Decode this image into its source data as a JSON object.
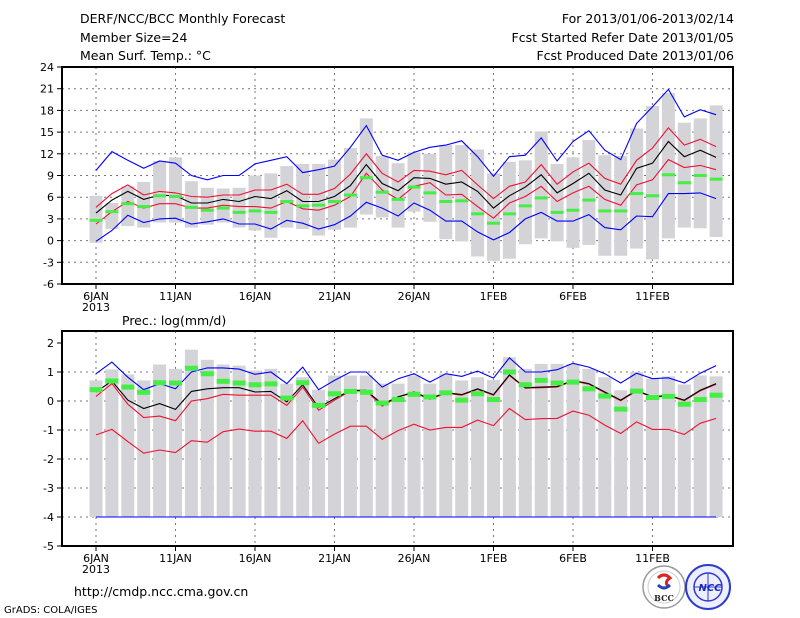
{
  "header": {
    "title": "DERF/NCC/BCC Monthly Forecast",
    "member_size": "Member Size=24",
    "variable": "Mean Surf. Temp.: °C",
    "period": "For 2013/01/06-2013/02/14",
    "fcst_started": "Fcst Started Refer Date 2013/01/05",
    "fcst_produced": "Fcst Produced Date 2013/01/06"
  },
  "footer": {
    "url": "http://cmdp.ncc.cma.gov.cn",
    "credit": "GrADS: COLA/IGES",
    "logos": [
      "BCC",
      "NCC"
    ]
  },
  "colors": {
    "max_min": "#0000ff",
    "percentile": "#ee1133",
    "mean": "#000000",
    "observed": "#44ee44",
    "range_bar": "#d4d4d8"
  },
  "chart_data": [
    {
      "type": "line",
      "title": "Mean Surf. Temp.: °C",
      "ylabel": "°C",
      "ylim": [
        -6,
        24
      ],
      "yticks": [
        "24",
        "21",
        "18",
        "15",
        "12",
        "9",
        "6",
        "3",
        "0",
        "-3",
        "-6"
      ],
      "ytick_values": [
        24,
        21,
        18,
        15,
        12,
        9,
        6,
        3,
        0,
        -3,
        -6
      ],
      "xtick_labels": [
        "6JAN",
        "11JAN",
        "16JAN",
        "21JAN",
        "26JAN",
        "1FEB",
        "6FEB",
        "11FEB"
      ],
      "xtick_days": [
        0,
        5,
        10,
        15,
        20,
        25,
        30,
        35
      ],
      "year_label": "2013",
      "grid": true,
      "days": 40,
      "range_bars": {
        "low": [
          -0.3,
          1.6,
          2.0,
          1.8,
          2.5,
          2.5,
          1.8,
          2.2,
          2.5,
          1.8,
          1.4,
          0.4,
          1.8,
          1.6,
          0.7,
          1.5,
          1.8,
          3.6,
          3.2,
          1.8,
          4.0,
          2.6,
          0.2,
          -0.1,
          -2.2,
          -2.8,
          -2.5,
          -0.5,
          0.3,
          -0.1,
          -1.0,
          -0.6,
          -2.1,
          -2.1,
          -1.1,
          -2.6,
          0.3,
          1.8,
          1.7,
          0.5
        ],
        "high": [
          6.2,
          5.2,
          7.5,
          8.1,
          11.0,
          11.5,
          8.2,
          7.3,
          7.2,
          7.3,
          9.0,
          9.3,
          10.3,
          10.6,
          10.6,
          11.2,
          12.8,
          16.9,
          11.7,
          10.7,
          12.2,
          12.0,
          13.2,
          13.2,
          12.6,
          9.3,
          10.9,
          11.1,
          15.1,
          10.6,
          11.5,
          13.9,
          11.8,
          11.7,
          15.5,
          18.6,
          20.4,
          16.3,
          16.9,
          18.7
        ]
      },
      "series": [
        {
          "name": "max",
          "color_key": "max_min",
          "values": [
            9.7,
            12.3,
            11.1,
            10.0,
            11.0,
            10.7,
            9.0,
            8.4,
            9.0,
            9.0,
            10.6,
            11.1,
            11.6,
            9.4,
            9.8,
            10.3,
            12.9,
            15.9,
            11.8,
            11.1,
            12.2,
            12.9,
            13.2,
            13.8,
            11.6,
            8.9,
            11.6,
            11.8,
            14.2,
            11.0,
            13.7,
            15.2,
            12.5,
            11.2,
            16.2,
            18.5,
            20.9,
            17.1,
            18.1,
            17.4
          ]
        },
        {
          "name": "upper",
          "color_key": "percentile",
          "values": [
            4.6,
            6.5,
            7.7,
            6.3,
            6.8,
            6.6,
            6.1,
            6.0,
            6.3,
            6.3,
            7.0,
            7.0,
            7.8,
            6.4,
            6.4,
            7.2,
            9.2,
            12.0,
            9.3,
            8.1,
            9.7,
            9.6,
            9.1,
            9.7,
            7.7,
            5.8,
            7.5,
            8.1,
            10.5,
            7.8,
            9.5,
            10.7,
            8.6,
            7.8,
            11.1,
            12.8,
            15.6,
            13.2,
            14.0,
            13.0
          ]
        },
        {
          "name": "mean",
          "color_key": "mean",
          "values": [
            3.8,
            5.6,
            6.8,
            5.7,
            6.3,
            6.2,
            5.2,
            5.2,
            5.7,
            5.4,
            6.1,
            5.8,
            6.9,
            5.4,
            5.4,
            6.1,
            7.6,
            10.5,
            7.9,
            6.9,
            8.7,
            8.6,
            7.8,
            8.1,
            6.8,
            4.5,
            6.2,
            7.4,
            9.1,
            6.6,
            7.9,
            9.3,
            7.0,
            6.3,
            10.0,
            10.7,
            13.7,
            11.6,
            12.5,
            11.5
          ]
        },
        {
          "name": "lower",
          "color_key": "percentile",
          "values": [
            2.3,
            4.0,
            5.4,
            4.5,
            5.1,
            5.1,
            4.5,
            4.5,
            4.9,
            4.7,
            4.7,
            4.5,
            5.4,
            4.4,
            4.2,
            4.9,
            6.1,
            9.3,
            7.0,
            5.7,
            7.5,
            8.0,
            6.3,
            6.4,
            4.7,
            3.1,
            5.2,
            6.1,
            7.5,
            5.4,
            6.6,
            7.5,
            5.7,
            4.9,
            7.7,
            8.4,
            11.2,
            10.1,
            10.4,
            9.8
          ]
        },
        {
          "name": "min",
          "color_key": "max_min",
          "values": [
            -0.1,
            1.4,
            3.5,
            2.5,
            3.0,
            3.1,
            2.3,
            2.6,
            3.0,
            2.3,
            2.3,
            1.6,
            2.8,
            2.4,
            1.6,
            2.2,
            3.4,
            5.3,
            4.5,
            3.4,
            5.2,
            4.2,
            2.7,
            2.7,
            1.2,
            0.1,
            1.1,
            3.0,
            3.9,
            2.7,
            2.7,
            3.6,
            1.8,
            1.5,
            3.4,
            3.3,
            6.5,
            6.5,
            6.6,
            5.8
          ]
        }
      ],
      "observed_marks": [
        2.8,
        4.0,
        5.1,
        4.7,
        6.2,
        6.1,
        4.6,
        4.2,
        4.5,
        3.9,
        4.1,
        3.9,
        5.4,
        4.8,
        4.9,
        5.4,
        6.3,
        8.7,
        6.7,
        5.7,
        7.4,
        6.6,
        5.4,
        5.5,
        3.7,
        2.4,
        3.7,
        4.8,
        5.9,
        3.9,
        4.2,
        5.6,
        4.1,
        4.1,
        6.5,
        6.2,
        9.1,
        8.0,
        9.0,
        8.5
      ]
    },
    {
      "type": "line",
      "title": "Prec.: log(mm/d)",
      "ylabel": "log(mm/d)",
      "ylim": [
        -5,
        2
      ],
      "yticks": [
        "2",
        "1",
        "0",
        "-1",
        "-2",
        "-3",
        "-4",
        "-5"
      ],
      "ytick_values": [
        2,
        1,
        0,
        -1,
        -2,
        -3,
        -4,
        -5
      ],
      "xtick_labels": [
        "6JAN",
        "11JAN",
        "16JAN",
        "21JAN",
        "26JAN",
        "1FEB",
        "6FEB",
        "11FEB"
      ],
      "xtick_days": [
        0,
        5,
        10,
        15,
        20,
        25,
        30,
        35
      ],
      "year_label": "2013",
      "grid": true,
      "days": 40,
      "range_bars": {
        "low": [
          -4,
          -4,
          -4,
          -4,
          -4,
          -4,
          -4,
          -4,
          -4,
          -4,
          -4,
          -4,
          -4,
          -4,
          -4,
          -4,
          -4,
          -4,
          -4,
          -4,
          -4,
          -4,
          -4,
          -4,
          -4,
          -4,
          -4,
          -4,
          -4,
          -4,
          -4,
          -4,
          -4,
          -4,
          -4,
          -4,
          -4,
          -4,
          -4,
          -4
        ],
        "high": [
          0.71,
          1.09,
          0.92,
          0.71,
          1.26,
          1.11,
          1.77,
          1.42,
          1.26,
          1.22,
          1.05,
          1.11,
          0.6,
          0.82,
          0.39,
          0.88,
          0.88,
          0.88,
          0.6,
          0.6,
          0.88,
          0.6,
          0.94,
          0.71,
          0.82,
          0.73,
          1.51,
          1.11,
          1.28,
          1.28,
          1.28,
          1.11,
          0.82,
          0.37,
          1.0,
          0.77,
          0.85,
          0.57,
          0.88,
          0.85
        ]
      },
      "series": [
        {
          "name": "max",
          "color_key": "max_min",
          "values": [
            0.94,
            1.34,
            0.82,
            0.39,
            0.6,
            0.42,
            1.0,
            1.14,
            1.14,
            1.1,
            0.92,
            1.0,
            0.6,
            1.17,
            0.39,
            0.71,
            1.0,
            1.0,
            0.48,
            0.77,
            0.94,
            0.65,
            0.94,
            0.85,
            1.03,
            0.79,
            1.49,
            1.0,
            1.0,
            1.08,
            1.3,
            1.17,
            0.94,
            0.62,
            0.96,
            0.77,
            0.8,
            0.62,
            0.96,
            1.22
          ]
        },
        {
          "name": "upper",
          "color_key": "percentile",
          "values": [
            0.16,
            0.6,
            -0.11,
            -0.57,
            -0.52,
            -0.68,
            0.0,
            0.08,
            0.23,
            0.2,
            0.2,
            0.2,
            -0.15,
            0.48,
            -0.32,
            0.03,
            0.35,
            0.35,
            -0.18,
            0.14,
            0.28,
            0.06,
            0.27,
            0.2,
            0.4,
            0.2,
            0.88,
            0.44,
            0.46,
            0.48,
            0.69,
            0.58,
            0.29,
            0.01,
            0.35,
            0.12,
            0.18,
            0.01,
            0.35,
            0.58
          ]
        },
        {
          "name": "mean",
          "color_key": "mean",
          "values": [
            0.31,
            0.69,
            0.03,
            -0.26,
            -0.09,
            -0.29,
            0.33,
            0.42,
            0.46,
            0.46,
            0.31,
            0.33,
            -0.03,
            0.56,
            -0.23,
            0.08,
            0.37,
            0.37,
            -0.11,
            0.14,
            0.31,
            0.08,
            0.29,
            0.22,
            0.42,
            0.22,
            0.9,
            0.46,
            0.48,
            0.5,
            0.71,
            0.6,
            0.31,
            0.03,
            0.37,
            0.14,
            0.2,
            0.03,
            0.37,
            0.6
          ]
        },
        {
          "name": "lower",
          "color_key": "percentile",
          "values": [
            -1.17,
            -0.98,
            -1.4,
            -1.8,
            -1.69,
            -1.78,
            -1.37,
            -1.42,
            -1.06,
            -0.97,
            -1.04,
            -1.04,
            -1.29,
            -0.68,
            -1.46,
            -1.14,
            -0.87,
            -0.87,
            -1.32,
            -1.02,
            -0.8,
            -1.0,
            -0.91,
            -0.91,
            -0.66,
            -0.85,
            -0.26,
            -0.64,
            -0.61,
            -0.6,
            -0.35,
            -0.49,
            -0.83,
            -1.12,
            -0.72,
            -0.98,
            -0.98,
            -1.15,
            -0.77,
            -0.6
          ]
        },
        {
          "name": "min",
          "color_key": "max_min",
          "values": [
            -4,
            -4,
            -4,
            -4,
            -4,
            -4,
            -4,
            -4,
            -4,
            -4,
            -4,
            -4,
            -4,
            -4,
            -4,
            -4,
            -4,
            -4,
            -4,
            -4,
            -4,
            -4,
            -4,
            -4,
            -4,
            -4,
            -4,
            -4,
            -4,
            -4,
            -4,
            -4,
            -4,
            -4,
            -4,
            -4,
            -4,
            -4,
            -4,
            -4
          ]
        }
      ],
      "observed_marks": [
        0.39,
        0.69,
        0.48,
        0.3,
        0.63,
        0.62,
        1.13,
        0.94,
        0.68,
        0.62,
        0.56,
        0.59,
        0.1,
        0.63,
        -0.15,
        0.25,
        0.33,
        0.3,
        -0.07,
        0.05,
        0.23,
        0.14,
        0.28,
        0.03,
        0.25,
        0.05,
        1.0,
        0.56,
        0.71,
        0.62,
        0.65,
        0.42,
        0.17,
        -0.28,
        0.34,
        0.12,
        0.16,
        -0.11,
        0.05,
        0.2
      ]
    }
  ]
}
